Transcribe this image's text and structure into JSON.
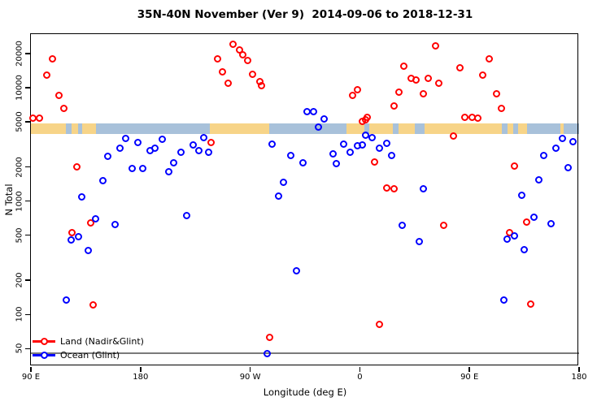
{
  "title": "35N-40N November (Ver 9)  2014-09-06 to 2018-12-31",
  "colors": {
    "land_series": "#ff0000",
    "ocean_series": "#0000ff",
    "strip_land": "#f7d488",
    "strip_ocean": "#a8c1da",
    "threshold_line": "#7a7a7a",
    "axis": "#000000"
  },
  "chart_data": {
    "type": "scatter",
    "title": "35N-40N November (Ver 9)  2014-09-06 to 2018-12-31",
    "xlabel": "Longitude (deg E)",
    "ylabel": "N Total",
    "x_axis": {
      "domain": [
        90,
        540
      ],
      "ticks": [
        {
          "value": 90,
          "label": "90 E"
        },
        {
          "value": 180,
          "label": "180"
        },
        {
          "value": 270,
          "label": "90 W"
        },
        {
          "value": 360,
          "label": "0"
        },
        {
          "value": 450,
          "label": "90 E"
        },
        {
          "value": 540,
          "label": "180"
        }
      ]
    },
    "y_axis": {
      "scale": "log",
      "domain": [
        35,
        29600
      ],
      "ticks": [
        50,
        100,
        200,
        500,
        1000,
        2000,
        5000,
        10000,
        20000
      ]
    },
    "threshold_line": {
      "y": 46
    },
    "land_ocean_strip": {
      "y_range": [
        3900,
        4800
      ],
      "segments": [
        {
          "from": 90,
          "to": 118.7,
          "type": "land"
        },
        {
          "from": 118.7,
          "to": 123.4,
          "type": "ocean"
        },
        {
          "from": 123.4,
          "to": 128.7,
          "type": "land"
        },
        {
          "from": 128.7,
          "to": 132.1,
          "type": "ocean"
        },
        {
          "from": 132.1,
          "to": 143.4,
          "type": "land"
        },
        {
          "from": 143.4,
          "to": 236.9,
          "type": "ocean"
        },
        {
          "from": 236.9,
          "to": 285.6,
          "type": "land"
        },
        {
          "from": 285.6,
          "to": 349.0,
          "type": "ocean"
        },
        {
          "from": 349.0,
          "to": 363.7,
          "type": "land"
        },
        {
          "from": 363.7,
          "to": 367.7,
          "type": "ocean"
        },
        {
          "from": 367.7,
          "to": 387.1,
          "type": "land"
        },
        {
          "from": 387.1,
          "to": 391.8,
          "type": "ocean"
        },
        {
          "from": 391.8,
          "to": 405.1,
          "type": "land"
        },
        {
          "from": 405.1,
          "to": 413.2,
          "type": "ocean"
        },
        {
          "from": 413.2,
          "to": 476.6,
          "type": "land"
        },
        {
          "from": 476.6,
          "to": 481.3,
          "type": "ocean"
        },
        {
          "from": 481.3,
          "to": 486.0,
          "type": "land"
        },
        {
          "from": 486.0,
          "to": 490.0,
          "type": "ocean"
        },
        {
          "from": 490.0,
          "to": 497.3,
          "type": "land"
        },
        {
          "from": 497.3,
          "to": 524.7,
          "type": "ocean"
        },
        {
          "from": 524.7,
          "to": 527.4,
          "type": "land"
        },
        {
          "from": 527.4,
          "to": 540.0,
          "type": "ocean"
        }
      ]
    },
    "series": [
      {
        "name": "Land (Nadir&Glint)",
        "color": "#ff0000",
        "points": [
          [
            108,
            17800
          ],
          [
            103,
            12800
          ],
          [
            113,
            8600
          ],
          [
            117,
            6500
          ],
          [
            92,
            5350
          ],
          [
            97,
            5350
          ],
          [
            128,
            2000
          ],
          [
            139,
            640
          ],
          [
            124,
            525
          ],
          [
            141,
            122
          ],
          [
            238,
            3270
          ],
          [
            256,
            24000
          ],
          [
            261,
            21500
          ],
          [
            264,
            19300
          ],
          [
            268,
            17200
          ],
          [
            243,
            17800
          ],
          [
            247,
            13700
          ],
          [
            252,
            11000
          ],
          [
            272,
            13000
          ],
          [
            278,
            11200
          ],
          [
            279,
            10350
          ],
          [
            354,
            8600
          ],
          [
            358,
            9500
          ],
          [
            362,
            5000
          ],
          [
            365,
            5160
          ],
          [
            366,
            5450
          ],
          [
            372,
            2200
          ],
          [
            382,
            1300
          ],
          [
            388,
            1280
          ],
          [
            422,
            23500
          ],
          [
            396,
            15350
          ],
          [
            402,
            12000
          ],
          [
            406,
            11700
          ],
          [
            416,
            12000
          ],
          [
            425,
            11000
          ],
          [
            392,
            9050
          ],
          [
            412,
            8800
          ],
          [
            388,
            6850
          ],
          [
            429,
            610
          ],
          [
            376,
            82
          ],
          [
            487,
            2030
          ],
          [
            466,
            17800
          ],
          [
            442,
            14850
          ],
          [
            461,
            12800
          ],
          [
            472,
            8800
          ],
          [
            476,
            6500
          ],
          [
            446,
            5450
          ],
          [
            452,
            5450
          ],
          [
            457,
            5350
          ],
          [
            437,
            3720
          ],
          [
            497,
            650
          ],
          [
            483,
            525
          ],
          [
            500,
            123
          ],
          [
            286,
            63
          ]
        ]
      },
      {
        "name": "Ocean (Glint)",
        "color": "#0000ff",
        "points": [
          [
            168,
            3550
          ],
          [
            163,
            2910
          ],
          [
            178,
            3270
          ],
          [
            188,
            2770
          ],
          [
            192,
            2910
          ],
          [
            198,
            3490
          ],
          [
            153,
            2470
          ],
          [
            173,
            1930
          ],
          [
            182,
            1930
          ],
          [
            203,
            1800
          ],
          [
            149,
            1510
          ],
          [
            132,
            1080
          ],
          [
            143,
            700
          ],
          [
            159,
            620
          ],
          [
            129,
            487
          ],
          [
            123,
            455
          ],
          [
            137,
            368
          ],
          [
            119,
            134
          ],
          [
            218,
            750
          ],
          [
            293,
            1100
          ],
          [
            308,
            243
          ],
          [
            284,
            45
          ],
          [
            232,
            3610
          ],
          [
            223,
            3120
          ],
          [
            228,
            2770
          ],
          [
            213,
            2680
          ],
          [
            236,
            2680
          ],
          [
            207,
            2160
          ],
          [
            288,
            3170
          ],
          [
            303,
            2510
          ],
          [
            313,
            2160
          ],
          [
            297,
            1460
          ],
          [
            317,
            6100
          ],
          [
            322,
            6100
          ],
          [
            331,
            5270
          ],
          [
            326,
            4470
          ],
          [
            347,
            3170
          ],
          [
            352,
            2680
          ],
          [
            358,
            3060
          ],
          [
            362,
            3120
          ],
          [
            365,
            3790
          ],
          [
            370,
            3610
          ],
          [
            376,
            2910
          ],
          [
            382,
            3220
          ],
          [
            338,
            2590
          ],
          [
            341,
            2120
          ],
          [
            386,
            2510
          ],
          [
            412,
            1280
          ],
          [
            395,
            610
          ],
          [
            409,
            440
          ],
          [
            526,
            3550
          ],
          [
            535,
            3320
          ],
          [
            521,
            2910
          ],
          [
            511,
            2510
          ],
          [
            531,
            1960
          ],
          [
            507,
            1540
          ],
          [
            493,
            1130
          ],
          [
            503,
            720
          ],
          [
            517,
            630
          ],
          [
            487,
            490
          ],
          [
            481,
            465
          ],
          [
            495,
            375
          ],
          [
            478,
            134
          ]
        ]
      }
    ],
    "legend": {
      "position": "bottom-left",
      "entries": [
        "Land (Nadir&Glint)",
        "Ocean (Glint)"
      ]
    },
    "grid": false
  }
}
